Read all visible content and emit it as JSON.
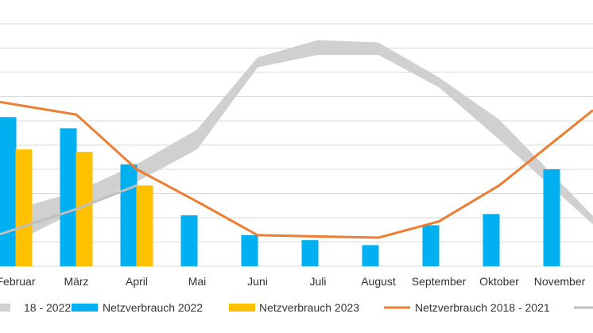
{
  "chart_data": {
    "type": "bar",
    "categories": [
      "Februar",
      "März",
      "April",
      "Mai",
      "Juni",
      "Juli",
      "August",
      "September",
      "Oktober",
      "November"
    ],
    "series": [
      {
        "name": "Netzverbrauch 2022",
        "type": "bar",
        "color": "#00B0F0",
        "values": [
          6.0,
          5.55,
          4.1,
          2.05,
          1.25,
          1.05,
          0.85,
          1.65,
          2.1,
          3.9
        ]
      },
      {
        "name": "Netzverbrauch 2023",
        "type": "bar",
        "color": "#FFC000",
        "values": [
          4.7,
          4.6,
          3.25,
          null,
          null,
          null,
          null,
          null,
          null,
          null
        ]
      },
      {
        "name": "Netzverbrauch 2018 - 2021",
        "type": "line",
        "color": "#ED7D31",
        "values": [
          6.5,
          6.1,
          3.9,
          2.6,
          1.25,
          1.2,
          1.15,
          1.8,
          3.25,
          5.2
        ]
      },
      {
        "name": "18 - 2022",
        "type": "range-area",
        "color": "#D0D0D0",
        "lower": [
          1.0,
          2.2,
          3.4,
          4.7,
          8.0,
          8.5,
          8.5,
          7.2,
          5.1,
          2.9
        ],
        "upper": [
          2.3,
          3.0,
          4.1,
          5.5,
          8.4,
          9.1,
          9.0,
          7.6,
          5.9,
          3.4
        ]
      },
      {
        "name": "",
        "type": "line",
        "color": "#BFBFBF",
        "values": [
          1.5,
          2.3,
          3.25,
          null,
          null,
          null,
          null,
          null,
          null,
          null
        ]
      }
    ],
    "ylim": [
      0,
      9.75
    ],
    "grid": true,
    "legend_position": "bottom",
    "title": "",
    "xlabel": "",
    "ylabel": ""
  },
  "legend": [
    {
      "label": "18 - 2022",
      "color": "#D0D0D0",
      "kind": "area"
    },
    {
      "label": "Netzverbrauch 2022",
      "color": "#00B0F0",
      "kind": "bar"
    },
    {
      "label": "Netzverbrauch 2023",
      "color": "#FFC000",
      "kind": "bar"
    },
    {
      "label": "Netzverbrauch 2018 - 2021",
      "color": "#ED7D31",
      "kind": "line"
    },
    {
      "label": "",
      "color": "#BFBFBF",
      "kind": "line"
    }
  ]
}
